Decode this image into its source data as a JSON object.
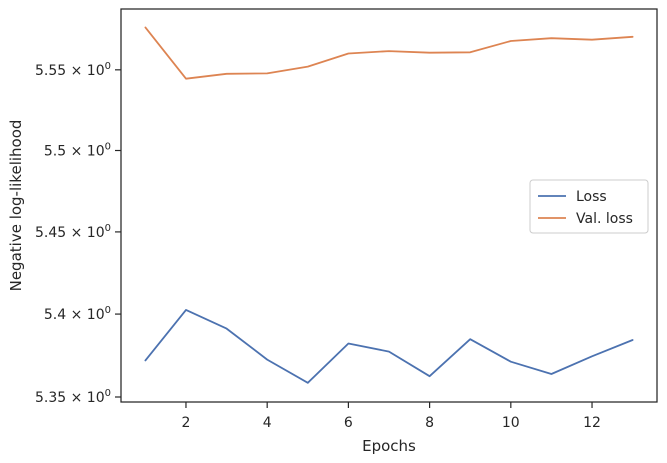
{
  "chart_data": {
    "type": "line",
    "title": "",
    "xlabel": "Epochs",
    "ylabel": "Negative log-likelihood",
    "xlim": [
      0.4,
      13.6
    ],
    "ylim": [
      5.347,
      5.588
    ],
    "x_ticks": [
      2,
      4,
      6,
      8,
      10,
      12
    ],
    "x_tick_labels": [
      "2",
      "4",
      "6",
      "8",
      "10",
      "12"
    ],
    "y_ticks": [
      5.35,
      5.4,
      5.45,
      5.5,
      5.55
    ],
    "y_tick_labels": [
      {
        "mantissa": "5.35",
        "base": "10",
        "exp": "0"
      },
      {
        "mantissa": "5.4",
        "base": "10",
        "exp": "0"
      },
      {
        "mantissa": "5.45",
        "base": "10",
        "exp": "0"
      },
      {
        "mantissa": "5.5",
        "base": "10",
        "exp": "0"
      },
      {
        "mantissa": "5.55",
        "base": "10",
        "exp": "0"
      }
    ],
    "y_scale": "log",
    "grid": false,
    "legend_position": "center-right",
    "x": [
      1,
      2,
      3,
      4,
      5,
      6,
      7,
      8,
      9,
      10,
      11,
      12,
      13
    ],
    "series": [
      {
        "name": "Loss",
        "color": "#4c72b0",
        "values": [
          5.372,
          5.4025,
          5.3912,
          5.3725,
          5.3585,
          5.3822,
          5.3773,
          5.3625,
          5.3848,
          5.3712,
          5.3638,
          5.3745,
          5.3843
        ]
      },
      {
        "name": "Val. loss",
        "color": "#dd8452",
        "values": [
          5.5765,
          5.5445,
          5.5475,
          5.5478,
          5.552,
          5.5602,
          5.5617,
          5.5607,
          5.5609,
          5.568,
          5.5697,
          5.5688,
          5.5706
        ]
      }
    ]
  }
}
